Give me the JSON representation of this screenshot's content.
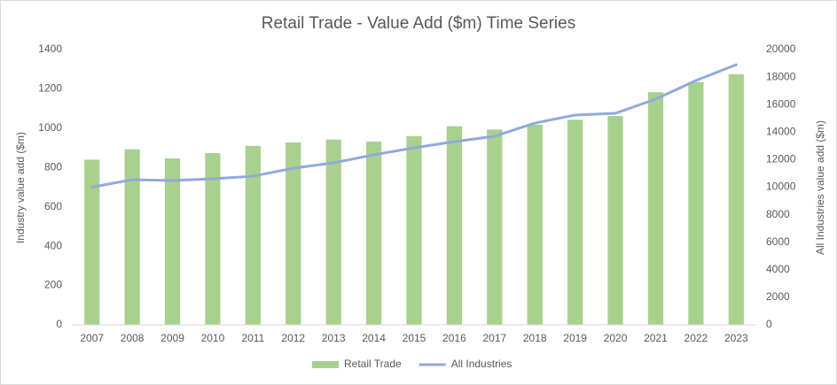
{
  "chart_data": {
    "type": "bar-line",
    "title": "Retail Trade - Value Add ($m) Time Series",
    "y_label": "Industry value add ($m)",
    "y2_label": "All Industries value add ($m)",
    "categories": [
      "2007",
      "2008",
      "2009",
      "2010",
      "2011",
      "2012",
      "2013",
      "2014",
      "2015",
      "2016",
      "2017",
      "2018",
      "2019",
      "2020",
      "2021",
      "2022",
      "2023"
    ],
    "series": [
      {
        "name": "Retail Trade",
        "type": "bar",
        "color": "#a9d18e",
        "axis": "y",
        "values": [
          840,
          893,
          847,
          873,
          910,
          928,
          942,
          932,
          960,
          1010,
          993,
          1018,
          1043,
          1062,
          1183,
          1235,
          1275
        ]
      },
      {
        "name": "All Industries",
        "type": "line",
        "color": "#8faadc",
        "axis": "y2",
        "values": [
          10000,
          10550,
          10480,
          10610,
          10800,
          11380,
          11770,
          12350,
          12860,
          13310,
          13700,
          14660,
          15240,
          15370,
          16400,
          17750,
          18900
        ]
      }
    ],
    "ylim": [
      0,
      1400
    ],
    "yticks": [
      0,
      200,
      400,
      600,
      800,
      1000,
      1200,
      1400
    ],
    "y2lim": [
      0,
      20000
    ],
    "y2ticks": [
      0,
      2000,
      4000,
      6000,
      8000,
      10000,
      12000,
      14000,
      16000,
      18000,
      20000
    ],
    "grid": false,
    "legend": "bottom"
  }
}
